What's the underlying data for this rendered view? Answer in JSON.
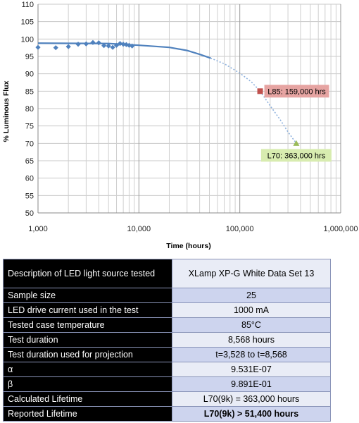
{
  "chart_data": {
    "type": "scatter",
    "xscale": "log",
    "xlim": [
      1000,
      1000000
    ],
    "ylim": [
      50,
      110
    ],
    "xlabel": "Time (hours)",
    "ylabel": "% Luminous Flux",
    "x_ticks": [
      "1,000",
      "10,000",
      "100,000",
      "1,000,000"
    ],
    "y_ticks": [
      "50",
      "55",
      "60",
      "65",
      "70",
      "75",
      "80",
      "85",
      "90",
      "95",
      "100",
      "105",
      "110"
    ],
    "grid": true,
    "measured": {
      "x": [
        1000,
        1500,
        2000,
        2500,
        3000,
        3500,
        4000,
        4500,
        5000,
        5500,
        6000,
        6500,
        7000,
        7500,
        8000,
        8568
      ],
      "y": [
        97.6,
        97.5,
        97.8,
        98.5,
        98.6,
        99.0,
        98.9,
        98.1,
        98.0,
        97.6,
        98.2,
        98.7,
        98.5,
        98.4,
        98.2,
        98.0
      ]
    },
    "fit_solid": {
      "x": [
        1000,
        5000,
        10000,
        20000,
        30000,
        40000,
        51400
      ],
      "y": [
        98.8,
        98.7,
        98.2,
        97.6,
        96.7,
        95.6,
        94.5
      ]
    },
    "fit_projection": {
      "x": [
        51400,
        70000,
        100000,
        130000,
        159000,
        200000,
        250000,
        300000,
        363000
      ],
      "y": [
        94.5,
        92.9,
        90.2,
        87.7,
        85.0,
        80.8,
        76.9,
        73.3,
        70.0
      ]
    },
    "points": [
      {
        "label": "L85: 159,000 hrs",
        "x": 159000,
        "y": 85,
        "color": "#c0504d"
      },
      {
        "label": "L70: 363,000 hrs",
        "x": 363000,
        "y": 70,
        "color": "#9bbb59"
      }
    ],
    "colors": {
      "measured": "#4f81bd",
      "fit": "#4f81bd",
      "l85_box": "#e6a4a2",
      "l70_box": "#d8ecb0"
    }
  },
  "table": {
    "rows": [
      {
        "label": "Description of LED light source tested",
        "value": "XLamp XP-G White Data Set 13"
      },
      {
        "label": "Sample size",
        "value": "25"
      },
      {
        "label": "LED drive current used in the test",
        "value": "1000 mA"
      },
      {
        "label": "Tested case temperature",
        "value": "85°C"
      },
      {
        "label": "Test duration",
        "value": "8,568 hours"
      },
      {
        "label": "Test duration used for projection",
        "value": "t=3,528 to t=8,568"
      },
      {
        "label": "α",
        "value": "9.531E-07"
      },
      {
        "label": "β",
        "value": "9.891E-01"
      },
      {
        "label": "Calculated Lifetime",
        "value": "L70(9k) = 363,000 hours"
      },
      {
        "label": "Reported Lifetime",
        "value": "L70(9k) > 51,400 hours"
      }
    ]
  }
}
